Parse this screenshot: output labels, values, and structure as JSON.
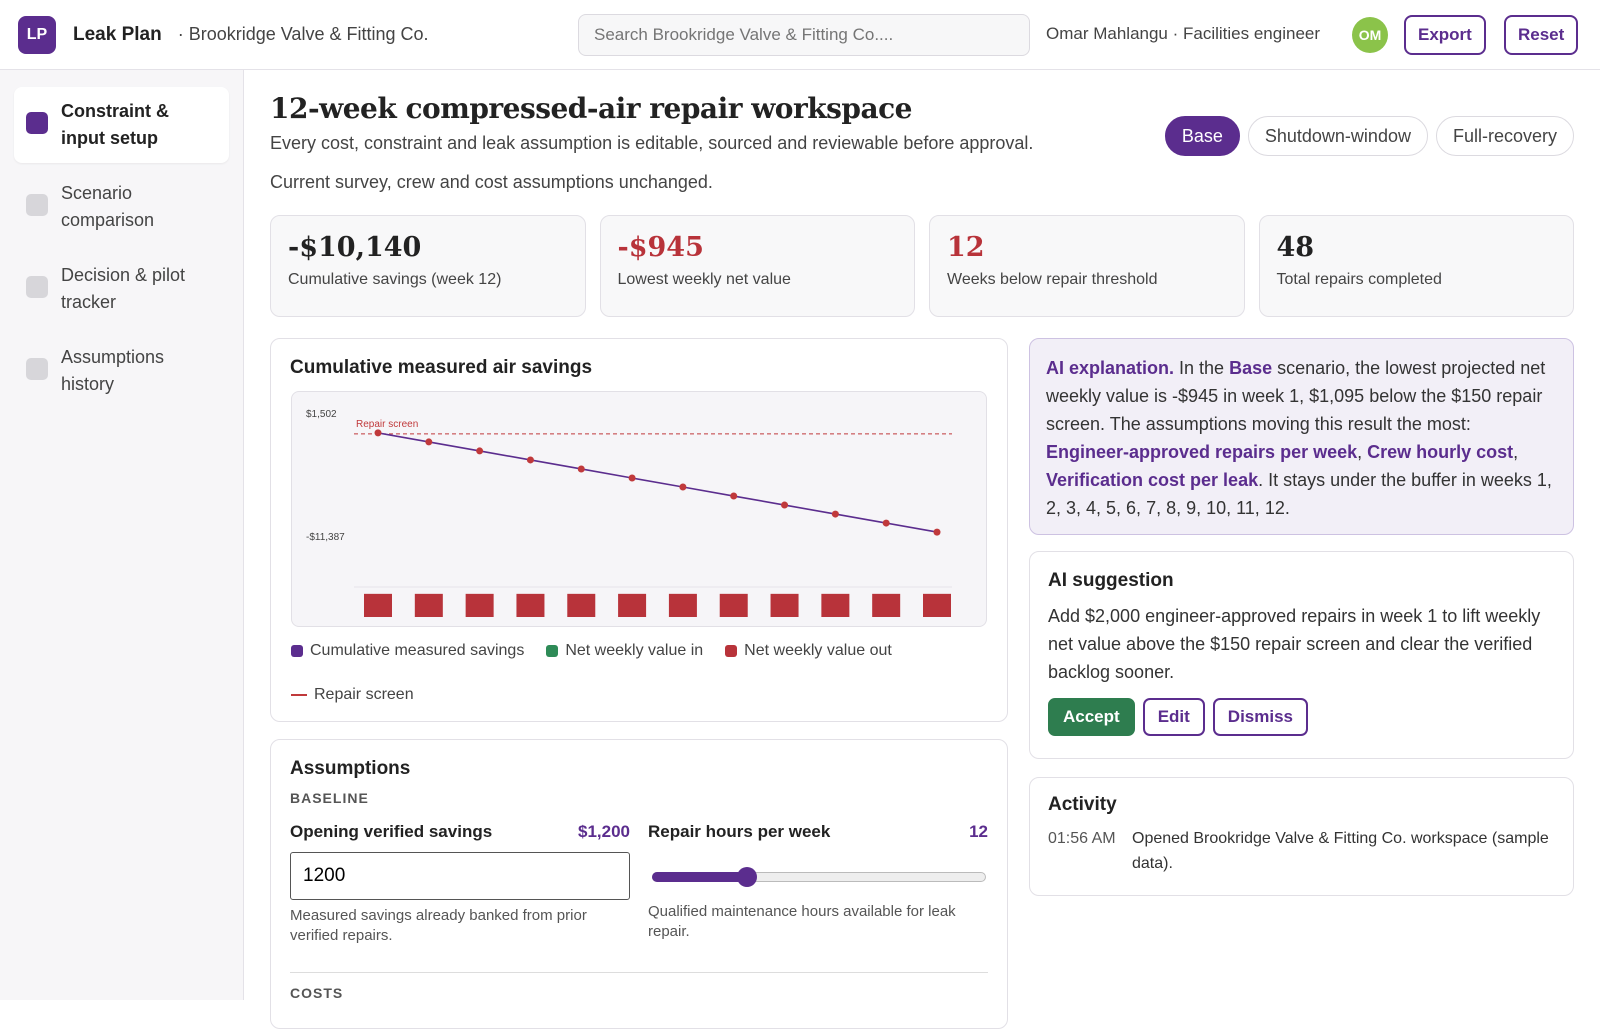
{
  "header": {
    "logo": "LP",
    "app": "Leak Plan",
    "org": "· Brookridge Valve & Fitting Co.",
    "search_placeholder": "Search Brookridge Valve & Fitting Co....",
    "user": "Omar Mahlangu · Facilities engineer",
    "avatar": "OM",
    "buttons": [
      "Export",
      "Reset"
    ]
  },
  "nav": {
    "items": [
      "Constraint & input setup",
      "Scenario comparison",
      "Decision & pilot tracker",
      "Assumptions history"
    ]
  },
  "main": {
    "title": "12-week compressed-air repair workspace",
    "subtitle": "Every cost, constraint and leak assumption is editable, sourced and reviewable before approval.",
    "status": "Current survey, crew and cost assumptions unchanged.",
    "scenarios": [
      "Base",
      "Shutdown-window",
      "Full-recovery"
    ]
  },
  "kpis": [
    {
      "value": "-$10,140",
      "label": "Cumulative savings (week 12)"
    },
    {
      "value": "-$945",
      "label": "Lowest weekly net value"
    },
    {
      "value": "12",
      "label": "Weeks below repair threshold"
    },
    {
      "value": "48",
      "label": "Total repairs completed"
    }
  ],
  "chart_data": {
    "type": "line",
    "title": "Cumulative measured air savings",
    "series": [
      {
        "name": "Cumulative measured savings",
        "color": "#5b2d8e",
        "marker_color": "#c0393b",
        "values": [
          255,
          -690,
          -1635,
          -2580,
          -3525,
          -4470,
          -5415,
          -6360,
          -7305,
          -8250,
          -9195,
          -10140
        ]
      },
      {
        "name": "Net weekly value in",
        "color": "#2e8b57",
        "axis": "y2",
        "values": [
          null,
          null,
          null,
          null,
          null,
          null,
          null,
          null,
          null,
          null,
          null,
          null
        ]
      },
      {
        "name": "Net weekly value out",
        "color": "#b8333a",
        "axis": "y2",
        "values": [
          -945,
          -945,
          -945,
          -945,
          -945,
          -945,
          -945,
          -945,
          -945,
          -945,
          -945,
          -945
        ]
      }
    ],
    "ylim": [
      -11387,
      1502
    ],
    "yticks": [
      {
        "value": 1502,
        "label": "$1,502"
      },
      {
        "value": -11387,
        "label": "-$11,387"
      }
    ],
    "y2lim": [
      0,
      -8000
    ],
    "annotation": {
      "label": "Repair screen",
      "value": 150,
      "color": "#c0393b"
    }
  },
  "ai_explanation": {
    "segments": [
      {
        "text": "AI explanation.",
        "em": true
      },
      {
        "text": " In the ",
        "em": false
      },
      {
        "text": "Base",
        "em": true
      },
      {
        "text": " scenario, the lowest projected net weekly value is -$945 in week 1, $1,095 below the $150 repair screen. The assumptions moving this result the most: ",
        "em": false
      },
      {
        "text": "Engineer-approved repairs per week",
        "em": true
      },
      {
        "text": ", ",
        "em": false
      },
      {
        "text": "Crew hourly cost",
        "em": true
      },
      {
        "text": ", ",
        "em": false
      },
      {
        "text": "Verification cost per leak",
        "em": true
      },
      {
        "text": ". It stays under the buffer in weeks 1, 2, 3, 4, 5, 6, 7, 8, 9, 10, 11, 12.",
        "em": false
      }
    ]
  },
  "ai_suggestion": {
    "title": "AI suggestion",
    "body": "Add $2,000 engineer-approved repairs in week 1 to lift weekly net value above the $150 repair screen and clear the verified backlog sooner.",
    "buttons": [
      "Accept",
      "Edit",
      "Dismiss"
    ]
  },
  "activity": {
    "title": "Activity",
    "entries": [
      {
        "time": "01:56 AM",
        "text": "Opened Brookridge Valve & Fitting Co. workspace (sample data)."
      }
    ]
  },
  "assumptions": {
    "title": "Assumptions",
    "section": "BASELINE",
    "fields": [
      {
        "label": "Opening verified savings",
        "value": "$1,200",
        "input": "1200",
        "help": "Measured savings already banked from prior verified repairs."
      },
      {
        "label": "Repair hours per week",
        "value": "12",
        "help": "Qualified maintenance hours available for leak repair."
      }
    ],
    "next_section": "COSTS"
  }
}
